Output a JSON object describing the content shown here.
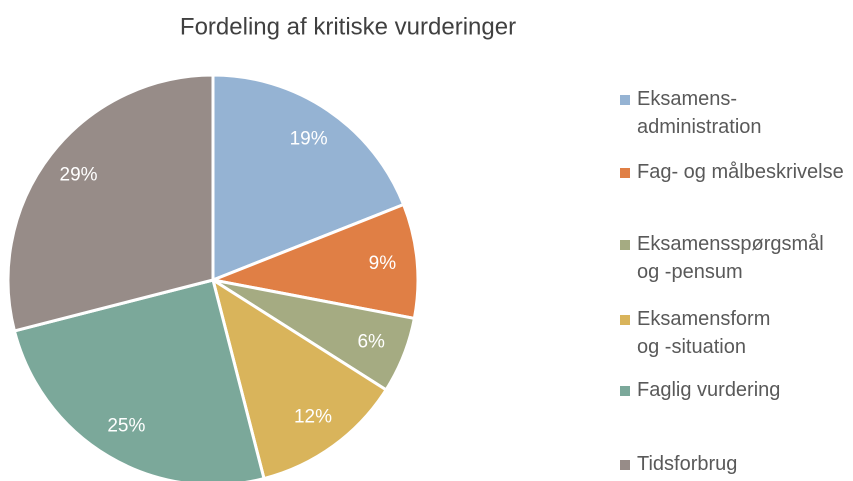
{
  "chart_data": {
    "type": "pie",
    "title": "Fordeling af kritiske vurderinger",
    "categories": [
      "Eksamens-\nadministration",
      "Fag- og målbeskrivelse",
      "Eksamensspørgsmål\nog -pensum",
      "Eksamensform\nog -situation",
      "Faglig vurdering",
      "Tidsforbrug"
    ],
    "values": [
      19,
      9,
      6,
      12,
      25,
      29
    ],
    "value_labels": [
      "19%",
      "9%",
      "6%",
      "12%",
      "25%",
      "29%"
    ],
    "colors": [
      "#95b3d3",
      "#e07f45",
      "#a5ab82",
      "#d9b45b",
      "#7ba89a",
      "#978c88"
    ],
    "legend": "right"
  }
}
